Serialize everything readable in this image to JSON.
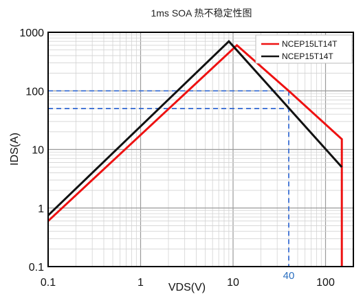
{
  "chart_data": {
    "type": "line",
    "title": "1ms  SOA 热不稳定性图",
    "xlabel": "VDS(V)",
    "ylabel": "IDS(A)",
    "xscale": "log",
    "yscale": "log",
    "xlim": [
      0.1,
      200
    ],
    "ylim": [
      0.1,
      1000
    ],
    "x_tick_labels": [
      "0.1",
      "1",
      "10",
      "100"
    ],
    "x_ticks": [
      0.1,
      1,
      10,
      100
    ],
    "y_tick_labels": [
      "0.1",
      "1",
      "10",
      "100",
      "1000"
    ],
    "y_ticks": [
      0.1,
      1,
      10,
      100,
      1000
    ],
    "grid": true,
    "legend_position": "top-right",
    "series": [
      {
        "name": "NCEP15LT14T",
        "color": "#ee1111",
        "points": [
          [
            0.1,
            0.6
          ],
          [
            11,
            600
          ],
          [
            40,
            100
          ],
          [
            150,
            15
          ],
          [
            150,
            0.1
          ]
        ]
      },
      {
        "name": "NCEP15T14T",
        "color": "#111111",
        "points": [
          [
            0.1,
            0.75
          ],
          [
            9,
            700
          ],
          [
            150,
            5
          ]
        ]
      }
    ],
    "reference_lines": {
      "color": "#3b6fd4",
      "horizontal": [
        100,
        50
      ],
      "vertical": [
        40
      ],
      "vertical_label": "40"
    }
  }
}
